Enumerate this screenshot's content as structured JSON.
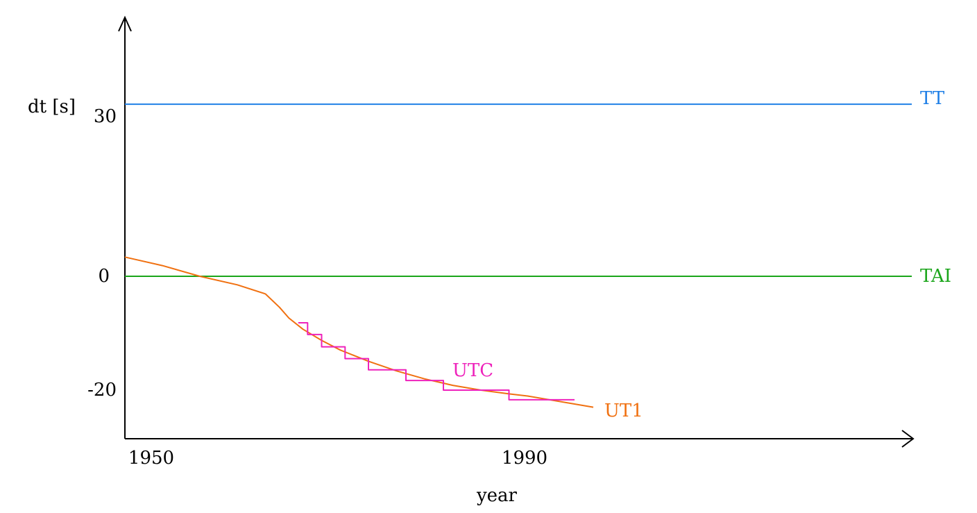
{
  "chart_data": {
    "type": "line",
    "title": "",
    "xlabel": "year",
    "ylabel": "dt [s]",
    "x_ticks": [
      1950,
      1990
    ],
    "y_ticks": [
      30,
      0,
      -20
    ],
    "grid": false,
    "series": [
      {
        "name": "TT",
        "color": "#1f7fe6",
        "step": false,
        "points": [
          [
            1950,
            32.2
          ],
          [
            2034,
            32.2
          ]
        ]
      },
      {
        "name": "TAI",
        "color": "#1aa51a",
        "step": false,
        "points": [
          [
            1950,
            0
          ],
          [
            2034,
            0
          ]
        ]
      },
      {
        "name": "UT1",
        "color": "#f07010",
        "step": false,
        "points": [
          [
            1950,
            3.6
          ],
          [
            1954,
            2
          ],
          [
            1958,
            0
          ],
          [
            1962,
            -1.6
          ],
          [
            1965,
            -3.3
          ],
          [
            1966.5,
            -5.8
          ],
          [
            1967.5,
            -7.8
          ],
          [
            1969,
            -9.9
          ],
          [
            1971,
            -12
          ],
          [
            1973,
            -13.8
          ],
          [
            1976,
            -15.9
          ],
          [
            1979,
            -17.7
          ],
          [
            1982,
            -19.2
          ],
          [
            1985,
            -20.4
          ],
          [
            1988,
            -21.3
          ],
          [
            1991,
            -22
          ],
          [
            1993,
            -22.4
          ],
          [
            2000,
            -24.5
          ]
        ]
      },
      {
        "name": "UTC",
        "color": "#ee22bb",
        "step": true,
        "points": [
          [
            1968.5,
            -8.7
          ],
          [
            1969.5,
            -10.9
          ],
          [
            1971,
            -13.2
          ],
          [
            1973.5,
            -15.4
          ],
          [
            1976,
            -17.5
          ],
          [
            1980,
            -19.5
          ],
          [
            1984,
            -21.3
          ],
          [
            1991,
            -23.1
          ],
          [
            1998,
            -23.1
          ]
        ]
      }
    ],
    "annotations": [
      {
        "text": "UTC",
        "x": 1987,
        "y": -16.5,
        "color": "#ee22bb"
      },
      {
        "text": "UT1",
        "x": 2001.5,
        "y": -24.3,
        "color": "#f07010"
      }
    ],
    "right_labels": [
      {
        "text": "TT",
        "y": 32.2,
        "color": "#1f7fe6"
      },
      {
        "text": "TAI",
        "y": 0,
        "color": "#1aa51a"
      }
    ]
  }
}
